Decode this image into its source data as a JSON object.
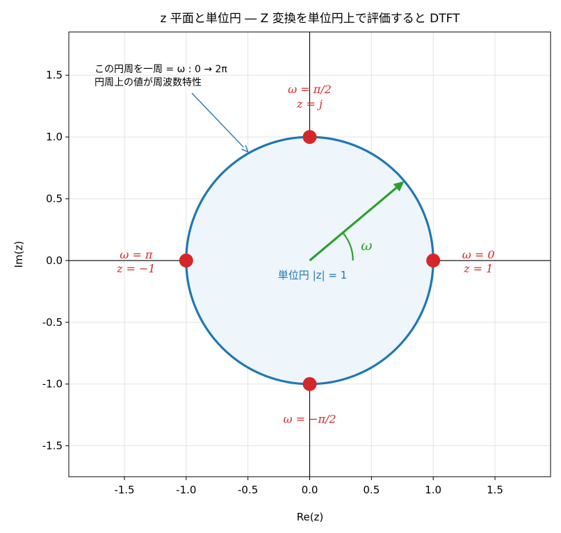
{
  "chart_data": {
    "type": "scatter",
    "title": "z 平面と単位円 ― Z 変換を単位円上で評価すると DTFT",
    "xlabel": "Re(z)",
    "ylabel": "Im(z)",
    "xlim": [
      -1.95,
      1.95
    ],
    "ylim": [
      -1.75,
      1.85
    ],
    "xticks": [
      -1.5,
      -1.0,
      -0.5,
      0.0,
      0.5,
      1.0,
      1.5
    ],
    "xtick_labels": [
      "-1.5",
      "-1.0",
      "-0.5",
      "0.0",
      "0.5",
      "1.0",
      "1.5"
    ],
    "yticks": [
      -1.5,
      -1.0,
      -0.5,
      0.0,
      0.5,
      1.0,
      1.5
    ],
    "ytick_labels": [
      "-1.5",
      "-1.0",
      "-0.5",
      "0.0",
      "0.5",
      "1.0",
      "1.5"
    ],
    "grid": true,
    "unit_circle": {
      "radius": 1,
      "label": "単位円 |z| = 1",
      "color": "#1f77b4",
      "fill": "#eef5fb"
    },
    "points": [
      {
        "x": 1,
        "y": 0,
        "omega_label": "ω = 0",
        "z_label": "z = 1"
      },
      {
        "x": 0,
        "y": 1,
        "omega_label": "ω = π/2",
        "z_label": "z = j"
      },
      {
        "x": -1,
        "y": 0,
        "omega_label": "ω = π",
        "z_label": "z = −1"
      },
      {
        "x": 0,
        "y": -1,
        "omega_label": "ω = −π/2",
        "z_label": ""
      }
    ],
    "point_color": "#d62728",
    "omega_arrow": {
      "angle_deg": 40,
      "length": 1.0,
      "label": "ω",
      "color": "#2ca02c"
    },
    "annotation": {
      "lines": [
        "この円周を一周 = ω : 0 → 2π",
        "円周上の値が周波数特性"
      ],
      "target": [
        -0.5,
        0.88
      ],
      "color": "#1f77b4"
    }
  }
}
